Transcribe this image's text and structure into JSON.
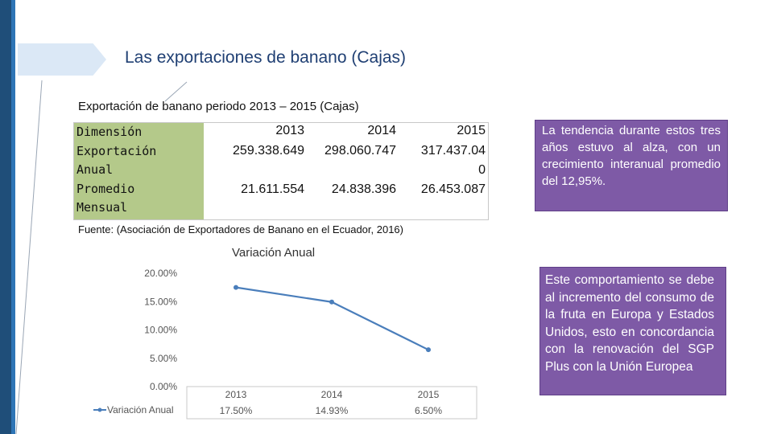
{
  "slide": {
    "title": "Las exportaciones de banano (Cajas)",
    "subtitle": "Exportación de banano periodo 2013 – 2015 (Cajas)",
    "source": "Fuente: (Asociación de Exportadores de Banano en el Ecuador, 2016)"
  },
  "table": {
    "header_label": "Dimensión",
    "row1_label_a": "Exportación",
    "row1_label_b": "Anual",
    "row2_label_a": "Promedio",
    "row2_label_b": "Mensual",
    "years": [
      "2013",
      "2014",
      "2015"
    ],
    "anual": [
      "259.338.649",
      "298.060.747",
      "317.437.04"
    ],
    "anual_wrap": "0",
    "mensual": [
      "21.611.554",
      "24.838.396",
      "26.453.087"
    ]
  },
  "notes": {
    "box1": "La tendencia durante estos tres años estuvo al alza, con un crecimiento interanual promedio del 12,95%.",
    "box2": "Este comportamiento se debe al incremento del consumo de la fruta en Europa y Estados Unidos, esto en concordancia con la renovación del SGP Plus con la Unión Europea"
  },
  "colors": {
    "accent_purple": "#7e5aa6",
    "table_green": "#b4c98a",
    "series_blue": "#4a7ebb",
    "title_blue": "#1f3f73"
  },
  "chart_data": {
    "type": "line",
    "title": "Variación Anual",
    "categories": [
      "2013",
      "2014",
      "2015"
    ],
    "series": [
      {
        "name": "Variación Anual",
        "values": [
          17.5,
          14.93,
          6.5
        ]
      }
    ],
    "value_labels": [
      "17.50%",
      "14.93%",
      "6.50%"
    ],
    "y_ticks": [
      "20.00%",
      "15.00%",
      "10.00%",
      "5.00%",
      "0.00%"
    ],
    "ylim": [
      0,
      20
    ],
    "xlabel": "",
    "ylabel": ""
  }
}
